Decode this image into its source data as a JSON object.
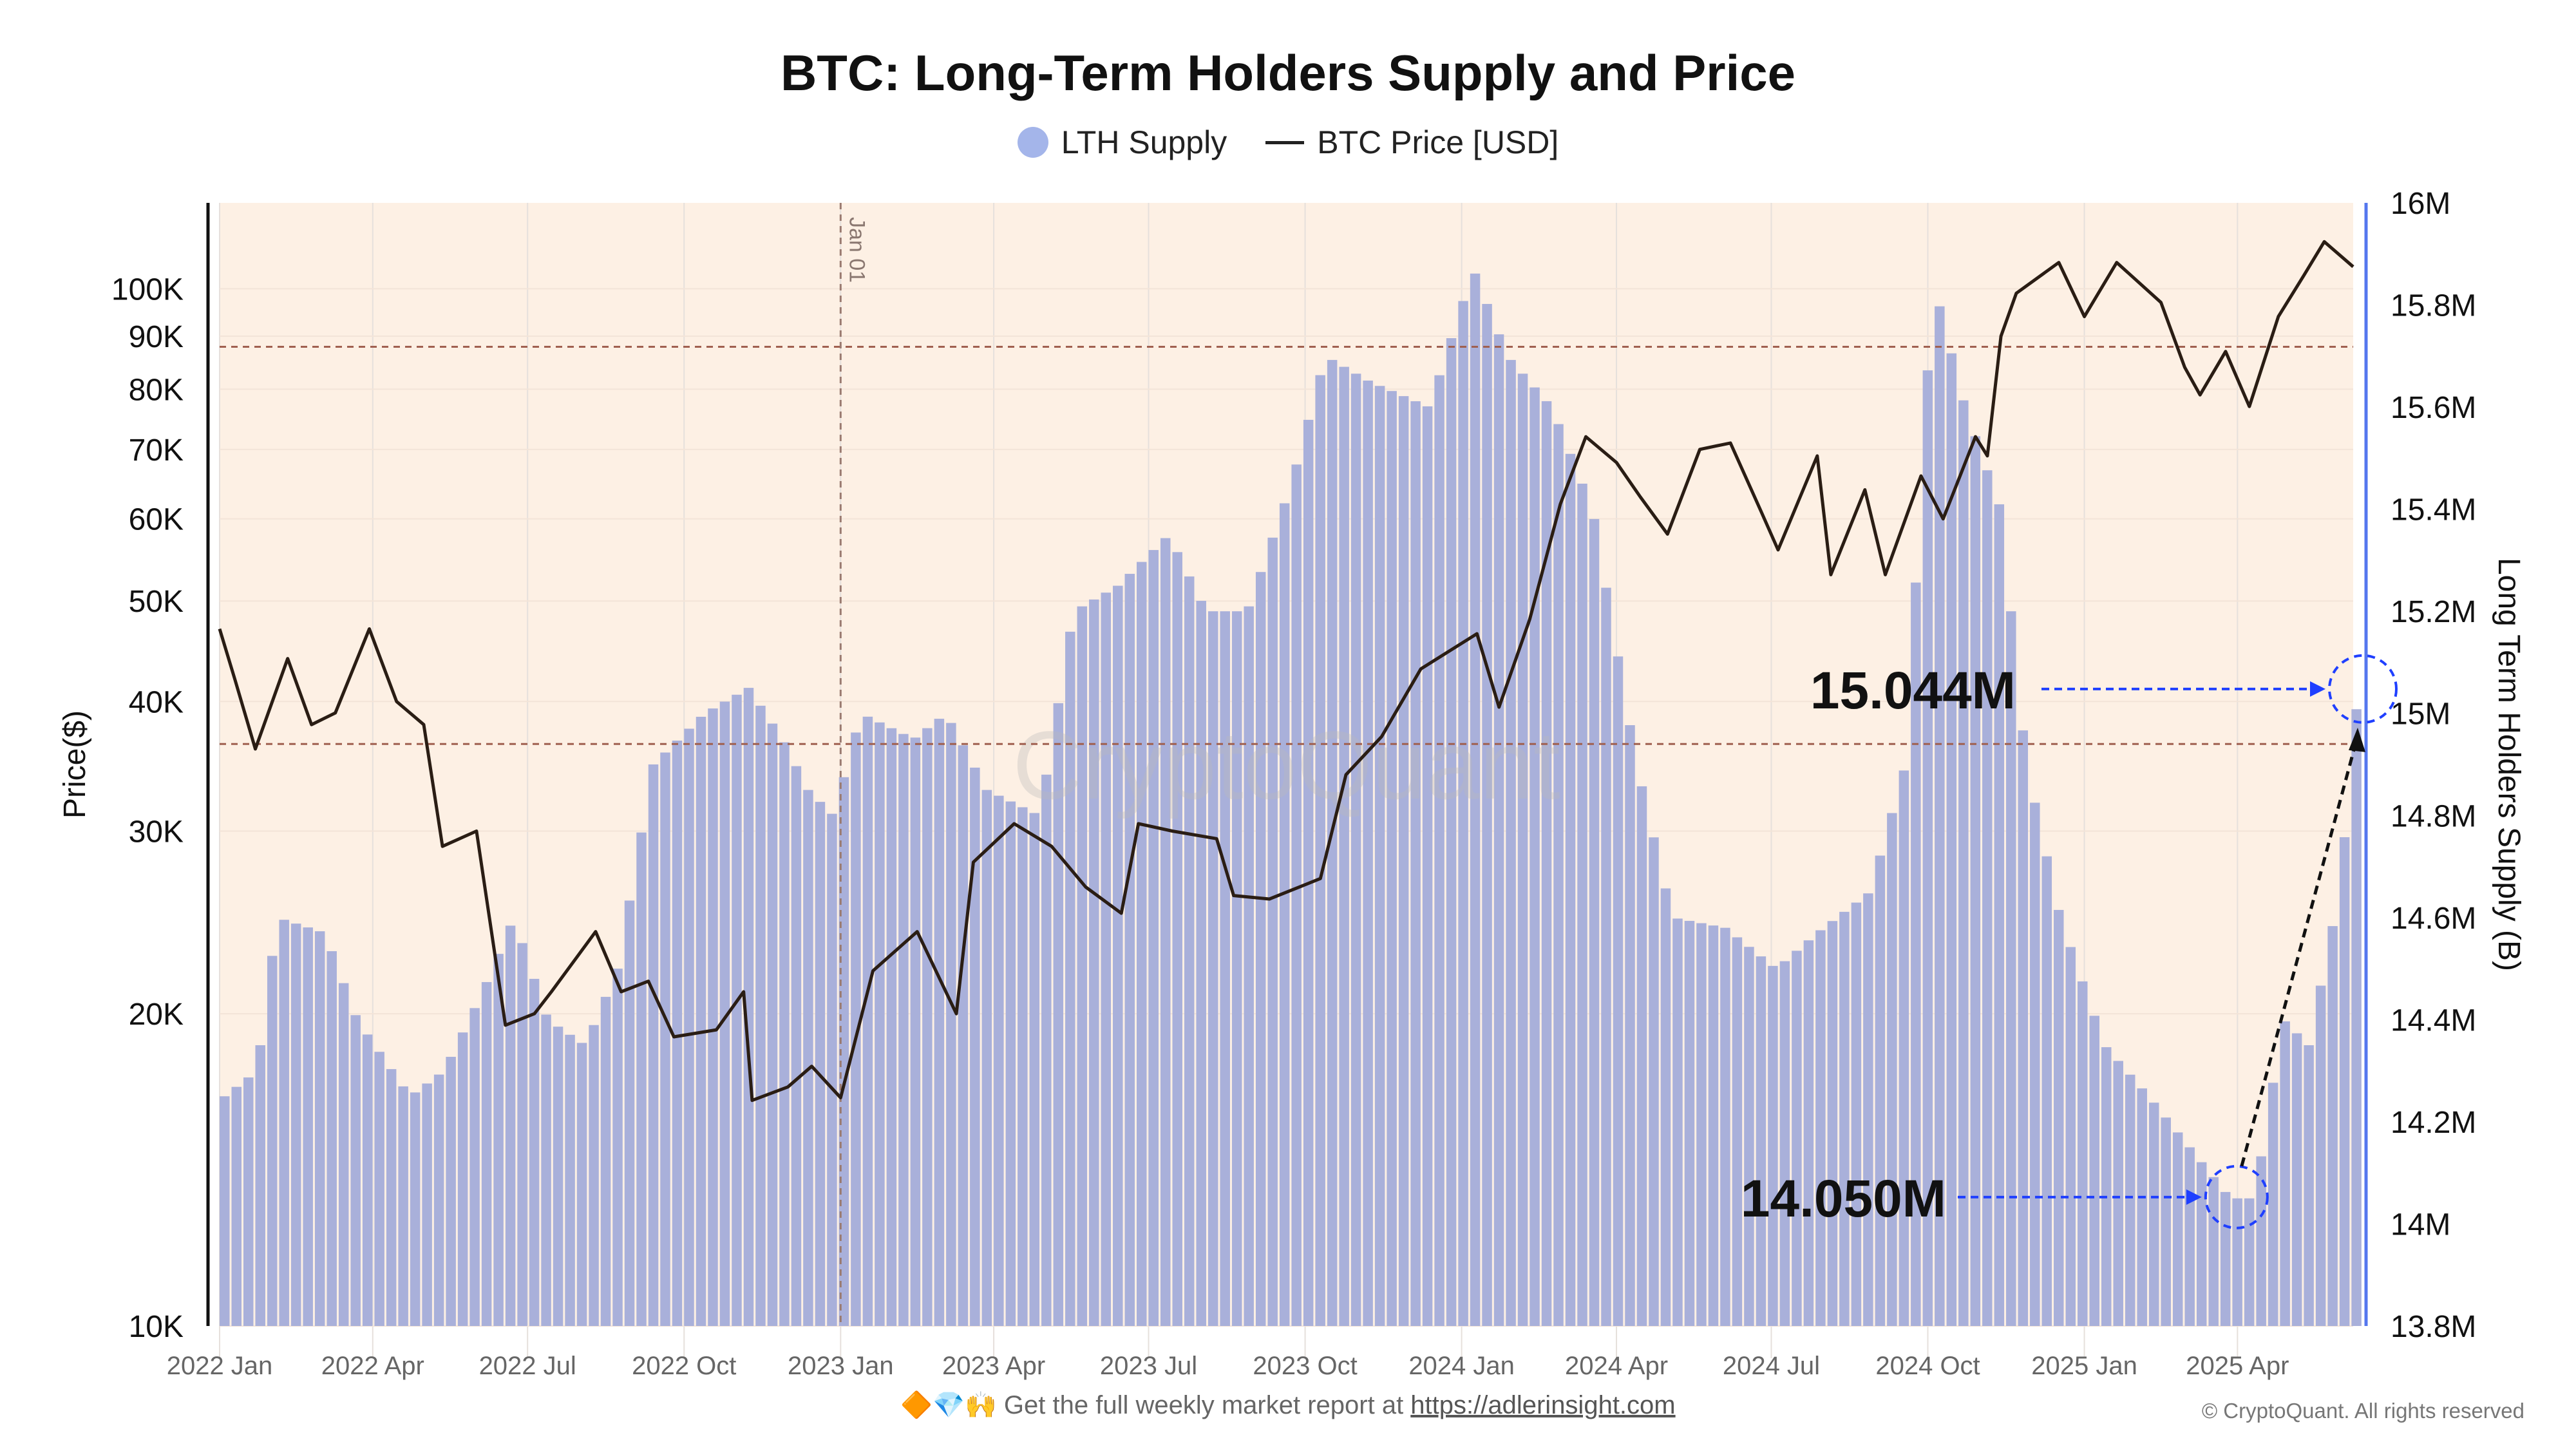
{
  "chart_data": {
    "type": "bar+line",
    "title": "BTC: Long-Term Holders Supply and Price",
    "legend": [
      "LTH Supply",
      "BTC Price [USD]"
    ],
    "legend_position": "top-center",
    "ylabel_left": "Price($)",
    "ylabel_right": "Long Term Holders Supply (B)",
    "left_axis": {
      "scale": "log",
      "range": [
        10000,
        121000
      ],
      "ticks": [
        {
          "v": 100000,
          "label": "100K"
        },
        {
          "v": 90000,
          "label": "90K"
        },
        {
          "v": 80000,
          "label": "80K"
        },
        {
          "v": 70000,
          "label": "70K"
        },
        {
          "v": 60000,
          "label": "60K"
        },
        {
          "v": 50000,
          "label": "50K"
        },
        {
          "v": 40000,
          "label": "40K"
        },
        {
          "v": 30000,
          "label": "30K"
        },
        {
          "v": 20000,
          "label": "20K"
        },
        {
          "v": 10000,
          "label": "10K"
        }
      ]
    },
    "right_axis": {
      "scale": "linear",
      "range": [
        13.8,
        16.0
      ],
      "ticks": [
        {
          "v": 16.0,
          "label": "16M"
        },
        {
          "v": 15.8,
          "label": "15.8M"
        },
        {
          "v": 15.6,
          "label": "15.6M"
        },
        {
          "v": 15.4,
          "label": "15.4M"
        },
        {
          "v": 15.2,
          "label": "15.2M"
        },
        {
          "v": 15.0,
          "label": "15M"
        },
        {
          "v": 14.8,
          "label": "14.8M"
        },
        {
          "v": 14.6,
          "label": "14.6M"
        },
        {
          "v": 14.4,
          "label": "14.4M"
        },
        {
          "v": 14.2,
          "label": "14.2M"
        },
        {
          "v": 14.0,
          "label": "14M"
        },
        {
          "v": 13.8,
          "label": "13.8M"
        }
      ]
    },
    "x_range": [
      "2022-01-01",
      "2025-06-08"
    ],
    "x_ticks": [
      {
        "d": "2022-01-01",
        "label": "2022 Jan"
      },
      {
        "d": "2022-04-01",
        "label": "2022 Apr"
      },
      {
        "d": "2022-07-01",
        "label": "2022 Jul"
      },
      {
        "d": "2022-10-01",
        "label": "2022 Oct"
      },
      {
        "d": "2023-01-01",
        "label": "2023 Jan"
      },
      {
        "d": "2023-04-01",
        "label": "2023 Apr"
      },
      {
        "d": "2023-07-01",
        "label": "2023 Jul"
      },
      {
        "d": "2023-10-01",
        "label": "2023 Oct"
      },
      {
        "d": "2024-01-01",
        "label": "2024 Jan"
      },
      {
        "d": "2024-04-01",
        "label": "2024 Apr"
      },
      {
        "d": "2024-07-01",
        "label": "2024 Jul"
      },
      {
        "d": "2024-10-01",
        "label": "2024 Oct"
      },
      {
        "d": "2025-01-01",
        "label": "2025 Jan"
      },
      {
        "d": "2025-04-01",
        "label": "2025 Apr"
      }
    ],
    "price": [
      [
        "2022-01-01",
        47000
      ],
      [
        "2022-01-10",
        42000
      ],
      [
        "2022-01-22",
        36000
      ],
      [
        "2022-02-10",
        44000
      ],
      [
        "2022-02-24",
        38000
      ],
      [
        "2022-03-10",
        39000
      ],
      [
        "2022-03-30",
        47000
      ],
      [
        "2022-04-15",
        40000
      ],
      [
        "2022-05-01",
        38000
      ],
      [
        "2022-05-12",
        29000
      ],
      [
        "2022-06-01",
        30000
      ],
      [
        "2022-06-18",
        19500
      ],
      [
        "2022-07-05",
        20000
      ],
      [
        "2022-07-15",
        21000
      ],
      [
        "2022-08-10",
        24000
      ],
      [
        "2022-08-25",
        21000
      ],
      [
        "2022-09-10",
        21500
      ],
      [
        "2022-09-25",
        19000
      ],
      [
        "2022-10-20",
        19300
      ],
      [
        "2022-11-05",
        21000
      ],
      [
        "2022-11-10",
        16500
      ],
      [
        "2022-12-01",
        17000
      ],
      [
        "2022-12-15",
        17800
      ],
      [
        "2023-01-01",
        16600
      ],
      [
        "2023-01-20",
        22000
      ],
      [
        "2023-02-15",
        24000
      ],
      [
        "2023-03-10",
        20000
      ],
      [
        "2023-03-20",
        28000
      ],
      [
        "2023-04-13",
        30500
      ],
      [
        "2023-05-05",
        29000
      ],
      [
        "2023-05-25",
        26500
      ],
      [
        "2023-06-15",
        25000
      ],
      [
        "2023-06-25",
        30500
      ],
      [
        "2023-07-15",
        30000
      ],
      [
        "2023-08-10",
        29500
      ],
      [
        "2023-08-20",
        26000
      ],
      [
        "2023-09-10",
        25800
      ],
      [
        "2023-10-10",
        27000
      ],
      [
        "2023-10-25",
        34000
      ],
      [
        "2023-11-15",
        37000
      ],
      [
        "2023-12-08",
        43000
      ],
      [
        "2024-01-10",
        46500
      ],
      [
        "2024-01-23",
        39500
      ],
      [
        "2024-02-10",
        48000
      ],
      [
        "2024-02-28",
        62000
      ],
      [
        "2024-03-14",
        72000
      ],
      [
        "2024-04-01",
        68000
      ],
      [
        "2024-04-15",
        63000
      ],
      [
        "2024-05-01",
        58000
      ],
      [
        "2024-05-20",
        70000
      ],
      [
        "2024-06-07",
        71000
      ],
      [
        "2024-06-25",
        61000
      ],
      [
        "2024-07-05",
        56000
      ],
      [
        "2024-07-28",
        69000
      ],
      [
        "2024-08-05",
        53000
      ],
      [
        "2024-08-25",
        64000
      ],
      [
        "2024-09-06",
        53000
      ],
      [
        "2024-09-27",
        66000
      ],
      [
        "2024-10-10",
        60000
      ],
      [
        "2024-10-29",
        72000
      ],
      [
        "2024-11-05",
        69000
      ],
      [
        "2024-11-13",
        90000
      ],
      [
        "2024-11-22",
        99000
      ],
      [
        "2024-12-17",
        106000
      ],
      [
        "2025-01-01",
        94000
      ],
      [
        "2025-01-20",
        106000
      ],
      [
        "2025-02-15",
        97000
      ],
      [
        "2025-03-01",
        84000
      ],
      [
        "2025-03-10",
        79000
      ],
      [
        "2025-03-25",
        87000
      ],
      [
        "2025-04-08",
        77000
      ],
      [
        "2025-04-25",
        94000
      ],
      [
        "2025-05-10",
        103000
      ],
      [
        "2025-05-22",
        111000
      ],
      [
        "2025-06-08",
        105000
      ]
    ],
    "lth_supply_m": [
      [
        "2022-01-01",
        14.25
      ],
      [
        "2022-01-20",
        14.3
      ],
      [
        "2022-02-01",
        14.6
      ],
      [
        "2022-03-01",
        14.57
      ],
      [
        "2022-03-20",
        14.4
      ],
      [
        "2022-04-20",
        14.25
      ],
      [
        "2022-05-10",
        14.3
      ],
      [
        "2022-06-01",
        14.45
      ],
      [
        "2022-06-20",
        14.6
      ],
      [
        "2022-07-10",
        14.4
      ],
      [
        "2022-08-01",
        14.35
      ],
      [
        "2022-08-20",
        14.5
      ],
      [
        "2022-09-10",
        14.9
      ],
      [
        "2022-10-10",
        15.0
      ],
      [
        "2022-11-05",
        15.05
      ],
      [
        "2022-11-25",
        14.95
      ],
      [
        "2022-12-10",
        14.85
      ],
      [
        "2022-12-25",
        14.8
      ],
      [
        "2023-01-10",
        15.0
      ],
      [
        "2023-02-10",
        14.95
      ],
      [
        "2023-03-01",
        15.0
      ],
      [
        "2023-03-25",
        14.85
      ],
      [
        "2023-04-25",
        14.8
      ],
      [
        "2023-05-15",
        15.2
      ],
      [
        "2023-06-10",
        15.25
      ],
      [
        "2023-07-10",
        15.35
      ],
      [
        "2023-08-01",
        15.2
      ],
      [
        "2023-08-25",
        15.2
      ],
      [
        "2023-09-20",
        15.45
      ],
      [
        "2023-10-10",
        15.7
      ],
      [
        "2023-11-05",
        15.65
      ],
      [
        "2023-12-10",
        15.6
      ],
      [
        "2024-01-05",
        15.87
      ],
      [
        "2024-01-25",
        15.7
      ],
      [
        "2024-02-20",
        15.6
      ],
      [
        "2024-03-15",
        15.4
      ],
      [
        "2024-04-10",
        14.9
      ],
      [
        "2024-05-01",
        14.6
      ],
      [
        "2024-06-01",
        14.58
      ],
      [
        "2024-07-01",
        14.5
      ],
      [
        "2024-07-25",
        14.57
      ],
      [
        "2024-08-25",
        14.65
      ],
      [
        "2024-09-15",
        14.9
      ],
      [
        "2024-10-01",
        15.85
      ],
      [
        "2024-10-20",
        15.6
      ],
      [
        "2024-11-10",
        15.4
      ],
      [
        "2024-11-25",
        14.9
      ],
      [
        "2024-12-15",
        14.6
      ],
      [
        "2025-01-10",
        14.35
      ],
      [
        "2025-02-05",
        14.25
      ],
      [
        "2025-03-01",
        14.15
      ],
      [
        "2025-03-25",
        14.05
      ],
      [
        "2025-04-08",
        14.05
      ],
      [
        "2025-04-25",
        14.4
      ],
      [
        "2025-05-10",
        14.35
      ],
      [
        "2025-05-28",
        14.65
      ],
      [
        "2025-06-08",
        15.044
      ]
    ],
    "reference_lines": {
      "vertical": [
        {
          "d": "2023-01-01",
          "label": "Jan 01"
        }
      ],
      "horizontal_price": [
        87900,
        36400
      ]
    },
    "annotations": [
      {
        "label": "15.044M",
        "d": "2025-06-08",
        "v": 15.044
      },
      {
        "label": "14.050M",
        "d": "2025-04-08",
        "v": 14.05
      }
    ],
    "watermark": "CryptoQuant"
  },
  "footer": {
    "emojis": "🔶💎🙌",
    "text": "Get the full weekly market report at ",
    "link": "https://adlerinsight.com",
    "copyright": "© CryptoQuant. All rights reserved"
  },
  "colors": {
    "bars": "#a9b0da",
    "price": "#2a1d14",
    "background": "#fdf0e4",
    "accent": "#1f3fff"
  }
}
